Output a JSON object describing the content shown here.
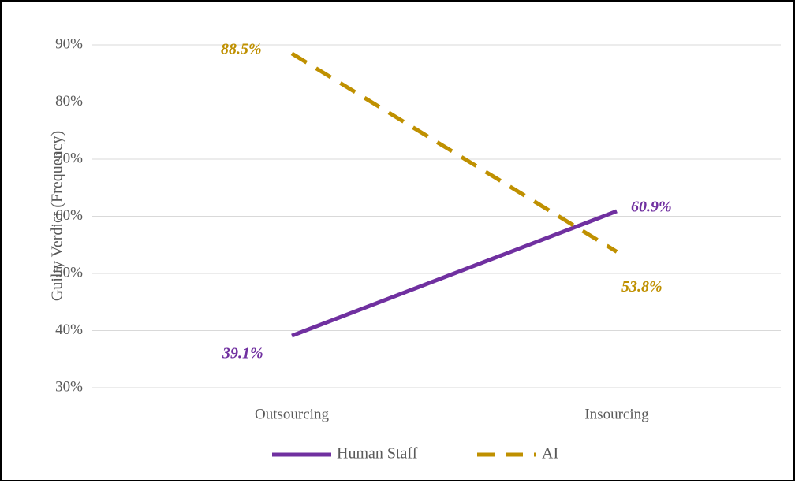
{
  "chart_data": {
    "type": "line",
    "title": "",
    "xlabel": "",
    "ylabel": "Guilty  Verdict  (Frequency)",
    "categories": [
      "Outsourcing",
      "Insourcing"
    ],
    "ylim": [
      30,
      90
    ],
    "yticks": [
      "30%",
      "40%",
      "50%",
      "60%",
      "70%",
      "80%",
      "90%"
    ],
    "grid": true,
    "legend": "bottom",
    "series": [
      {
        "name": "Human Staff",
        "values": [
          39.1,
          60.9
        ],
        "labels": [
          "39.1%",
          "60.9%"
        ],
        "color": "#7030a0",
        "dash": "solid"
      },
      {
        "name": "AI",
        "values": [
          88.5,
          53.8
        ],
        "labels": [
          "88.5%",
          "53.8%"
        ],
        "color": "#bf9000",
        "dash": "dashed"
      }
    ]
  }
}
